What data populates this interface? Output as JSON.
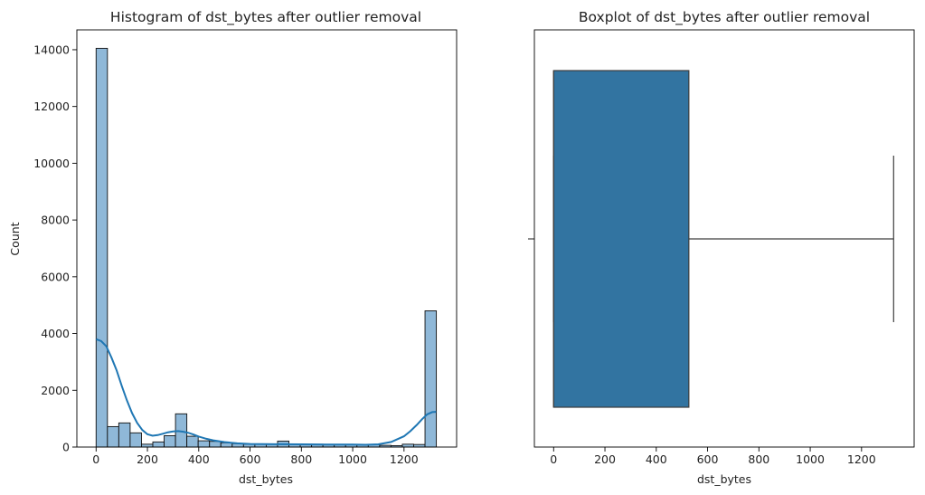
{
  "chart_data": [
    {
      "type": "bar",
      "subtype": "histogram",
      "title": "Histogram of dst_bytes after outlier removal",
      "xlabel": "dst_bytes",
      "ylabel": "Count",
      "xlim": [
        -75,
        1405
      ],
      "ylim": [
        0,
        14700
      ],
      "xticks": [
        0,
        200,
        400,
        600,
        800,
        1000,
        1200
      ],
      "yticks": [
        0,
        2000,
        4000,
        6000,
        8000,
        10000,
        12000,
        14000
      ],
      "bin_start": 0,
      "bin_width": 44.2,
      "values": [
        14050,
        720,
        850,
        500,
        100,
        180,
        400,
        1170,
        380,
        220,
        200,
        150,
        120,
        100,
        100,
        100,
        210,
        100,
        100,
        100,
        80,
        80,
        80,
        80,
        80,
        60,
        50,
        100,
        90,
        4800
      ],
      "kde": {
        "x": [
          0,
          20,
          40,
          60,
          80,
          100,
          120,
          140,
          160,
          180,
          200,
          220,
          240,
          260,
          280,
          300,
          320,
          340,
          360,
          380,
          400,
          430,
          460,
          500,
          550,
          600,
          700,
          800,
          900,
          1000,
          1050,
          1100,
          1150,
          1200,
          1225,
          1250,
          1270,
          1290,
          1310,
          1325
        ],
        "y": [
          3800,
          3730,
          3550,
          3150,
          2700,
          2150,
          1650,
          1200,
          850,
          600,
          450,
          400,
          420,
          470,
          520,
          550,
          560,
          540,
          500,
          440,
          370,
          290,
          230,
          175,
          130,
          110,
          100,
          95,
          90,
          85,
          80,
          95,
          180,
          380,
          560,
          780,
          980,
          1150,
          1230,
          1240
        ]
      },
      "colors": {
        "bar_fill": "#8fb8d8",
        "bar_edge": "#111111",
        "kde_line": "#1f77b4"
      },
      "grid": false
    },
    {
      "type": "boxplot",
      "title": "Boxplot of dst_bytes after outlier removal",
      "xlabel": "dst_bytes",
      "xlim": [
        -75,
        1405
      ],
      "xticks": [
        0,
        200,
        400,
        600,
        800,
        1000,
        1200
      ],
      "min": 0,
      "q1": 0,
      "median": 0,
      "q3": 527,
      "max": 1325,
      "colors": {
        "box_fill": "#3274a1",
        "line": "#3d3d3d"
      },
      "grid": false
    }
  ]
}
